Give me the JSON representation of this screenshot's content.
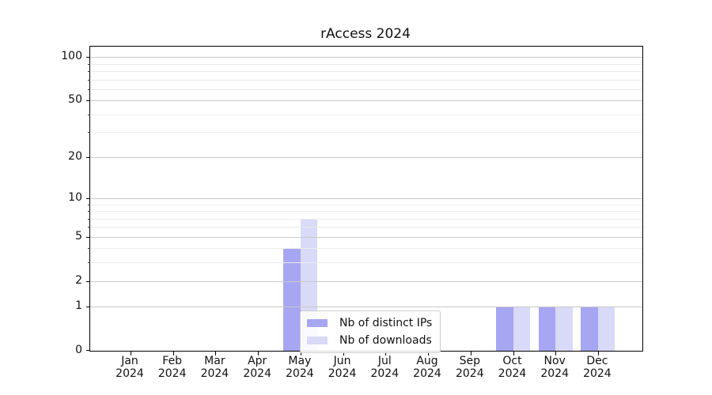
{
  "chart_data": {
    "type": "bar",
    "title": "rAccess 2024",
    "year_label": "2024",
    "categories": [
      "Jan",
      "Feb",
      "Mar",
      "Apr",
      "May",
      "Jun",
      "Jul",
      "Aug",
      "Sep",
      "Oct",
      "Nov",
      "Dec"
    ],
    "series": [
      {
        "name": "Nb of distinct IPs",
        "color": "#a6a6f2",
        "values": [
          0,
          0,
          0,
          0,
          4,
          0,
          0,
          0,
          0,
          1,
          1,
          1
        ]
      },
      {
        "name": "Nb of downloads",
        "color": "#d9d9f8",
        "values": [
          0,
          0,
          0,
          0,
          7,
          0,
          0,
          0,
          0,
          1,
          1,
          1
        ]
      }
    ],
    "yscale": "log1p",
    "ylim": [
      0,
      118
    ],
    "yticks_major": [
      0,
      1,
      2,
      5,
      10,
      20,
      50,
      100
    ],
    "yticks_minor": [
      3,
      4,
      6,
      7,
      8,
      9,
      30,
      40,
      60,
      70,
      80,
      90
    ],
    "grid": "horizontal",
    "legend_position": "lower-center-left"
  },
  "colors": {
    "background": "#ffffff",
    "major_grid": "#c9c9c9",
    "minor_grid": "#ececec",
    "spine": "#000000",
    "text": "#111111",
    "legend_border": "#cccccc"
  }
}
